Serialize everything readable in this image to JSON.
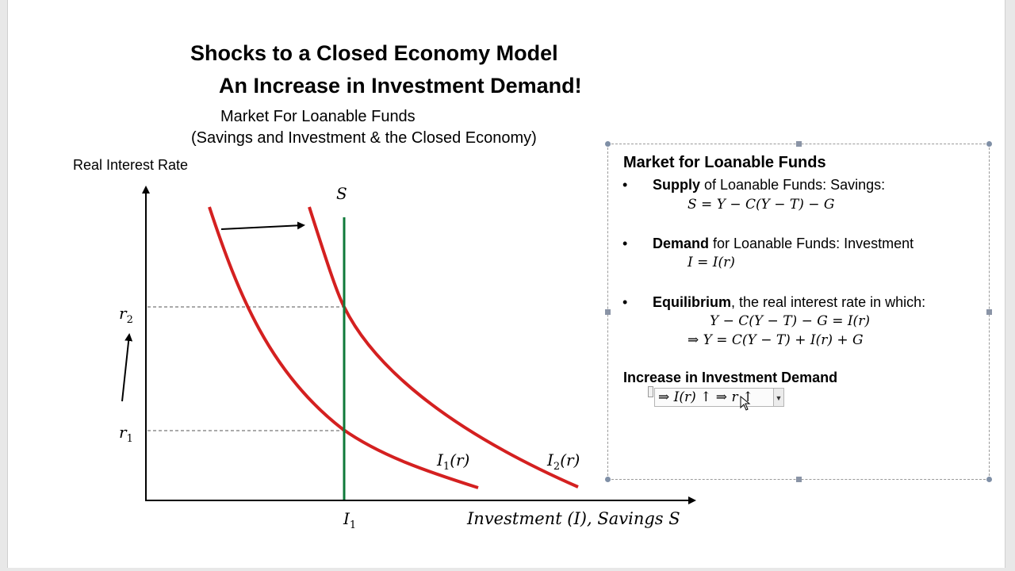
{
  "title_line1": "Shocks to a Closed Economy Model",
  "title_line2": "An Increase in Investment Demand!",
  "subtitle_line1": "Market For Loanable Funds",
  "subtitle_line2": "(Savings and Investment & the Closed Economy)",
  "graph": {
    "y_axis_label": "Real Interest Rate",
    "x_axis_label": "Investment (I),  Savings S",
    "supply_label": "S",
    "r1_label": "r",
    "r1_sub": "1",
    "r2_label": "r",
    "r2_sub": "2",
    "i1_label": "I",
    "i1_sub": "1",
    "curve1_label": "I",
    "curve1_sub": "1",
    "curve1_arg": "(r)",
    "curve2_label": "I",
    "curve2_sub": "2",
    "curve2_arg": "(r)",
    "colors": {
      "demand": "#d42020",
      "supply": "#0f7a3a",
      "axis": "#000000",
      "dashed": "#555555"
    }
  },
  "infobox": {
    "heading": "Market for Loanable Funds",
    "bullet1_bold": "Supply",
    "bullet1_rest": " of Loanable Funds: Savings:",
    "bullet1_eq": "S = Y − C(Y − T) − G",
    "bullet2_bold": "Demand",
    "bullet2_rest": " for Loanable Funds: Investment",
    "bullet2_eq": "I = I(r)",
    "bullet3_bold": "Equilibrium",
    "bullet3_rest": ", the real interest rate in which:",
    "bullet3_eq1": "Y − C(Y − T) − G = I(r)",
    "bullet3_eq2": "⇒  Y = C(Y − T) + I(r) + G",
    "increase_heading": "Increase in Investment Demand",
    "increase_eq": "⇒ I(r) ↑  ⇒ r ↑",
    "bullet_char": "•"
  }
}
